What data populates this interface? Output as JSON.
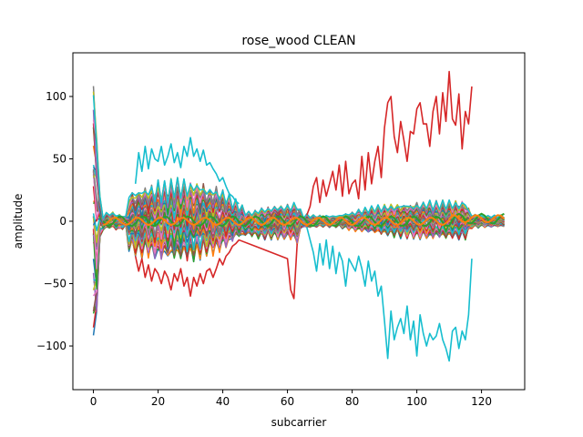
{
  "chart_data": {
    "type": "line",
    "title": "rose_wood CLEAN",
    "xlabel": "subcarrier",
    "ylabel": "amplitude",
    "xlim": [
      -6.35,
      133.35
    ],
    "ylim": [
      -135,
      135
    ],
    "xticks": [
      0,
      20,
      40,
      60,
      80,
      100,
      120
    ],
    "xtick_labels": [
      "0",
      "20",
      "40",
      "60",
      "80",
      "100",
      "120"
    ],
    "yticks": [
      -100,
      -50,
      0,
      50,
      100
    ],
    "ytick_labels": [
      "−100",
      "−50",
      "0",
      "50",
      "100"
    ],
    "grid": false,
    "legend": "none",
    "x_range": [
      0,
      127
    ],
    "series_count": 40,
    "palette": [
      "#1f77b4",
      "#ff7f0e",
      "#2ca02c",
      "#d62728",
      "#9467bd",
      "#8c564b",
      "#e377c2",
      "#7f7f7f",
      "#bcbd22",
      "#17becf"
    ],
    "envelope": {
      "x": [
        0,
        1,
        2,
        3,
        5,
        8,
        10,
        11,
        13,
        15,
        20,
        25,
        30,
        35,
        40,
        44,
        48,
        52,
        56,
        60,
        62,
        63,
        64,
        65,
        66,
        70,
        75,
        80,
        85,
        90,
        95,
        100,
        105,
        110,
        115,
        117,
        118,
        120,
        125,
        127
      ],
      "upper": [
        110,
        112,
        20,
        6,
        8,
        6,
        5,
        25,
        28,
        30,
        33,
        35,
        35,
        32,
        27,
        18,
        8,
        12,
        14,
        15,
        15,
        18,
        10,
        5,
        6,
        5,
        5,
        8,
        12,
        14,
        15,
        16,
        17,
        17,
        17,
        6,
        6,
        5,
        5,
        5
      ],
      "lower": [
        -125,
        -95,
        -20,
        -8,
        -6,
        -8,
        -5,
        -25,
        -28,
        -30,
        -33,
        -34,
        -33,
        -30,
        -25,
        -16,
        -12,
        -15,
        -15,
        -15,
        -15,
        -20,
        -8,
        -5,
        -6,
        -5,
        -5,
        -8,
        -10,
        -12,
        -14,
        -15,
        -15,
        -15,
        -15,
        -6,
        -6,
        -5,
        -5,
        -5
      ]
    },
    "outliers": [
      {
        "color": "#d62728",
        "x": [
          66,
          67,
          68,
          69,
          70,
          71,
          72,
          73,
          74,
          75,
          76,
          77,
          78,
          79,
          80,
          81,
          82,
          83,
          84,
          85,
          86,
          87,
          88,
          89,
          90,
          91,
          92,
          93,
          94,
          95,
          96,
          97,
          98,
          99,
          100,
          101,
          102,
          103,
          104,
          105,
          106,
          107,
          108,
          109,
          110,
          111,
          112,
          113,
          114,
          115,
          116,
          117
        ],
        "y": [
          5,
          12,
          28,
          35,
          15,
          33,
          20,
          30,
          40,
          25,
          45,
          20,
          48,
          22,
          30,
          33,
          18,
          52,
          25,
          55,
          30,
          48,
          60,
          35,
          75,
          95,
          100,
          68,
          55,
          80,
          65,
          48,
          72,
          70,
          90,
          95,
          78,
          78,
          60,
          88,
          100,
          70,
          103,
          80,
          120,
          82,
          77,
          102,
          58,
          88,
          78,
          108
        ]
      },
      {
        "color": "#17becf",
        "x": [
          66,
          67,
          68,
          69,
          70,
          71,
          72,
          73,
          74,
          75,
          76,
          77,
          78,
          79,
          80,
          81,
          82,
          83,
          84,
          85,
          86,
          87,
          88,
          89,
          90,
          91,
          92,
          93,
          94,
          95,
          96,
          97,
          98,
          99,
          100,
          101,
          102,
          103,
          104,
          105,
          106,
          107,
          108,
          109,
          110,
          111,
          112,
          113,
          114,
          115,
          116,
          117
        ],
        "y": [
          -5,
          -15,
          -25,
          -40,
          -18,
          -35,
          -15,
          -38,
          -20,
          -42,
          -25,
          -32,
          -52,
          -30,
          -35,
          -40,
          -28,
          -38,
          -52,
          -32,
          -48,
          -40,
          -60,
          -52,
          -80,
          -110,
          -72,
          -95,
          -85,
          -78,
          -90,
          -68,
          -95,
          -80,
          -108,
          -75,
          -90,
          -100,
          -90,
          -95,
          -92,
          -82,
          -95,
          -102,
          -112,
          -88,
          -85,
          -102,
          -88,
          -95,
          -75,
          -30
        ]
      },
      {
        "color": "#17becf",
        "x": [
          13,
          14,
          15,
          16,
          17,
          18,
          19,
          20,
          21,
          22,
          23,
          24,
          25,
          26,
          27,
          28,
          29,
          30,
          31,
          32,
          33,
          34,
          35,
          36,
          37,
          38,
          39,
          40,
          41,
          42,
          43,
          44,
          45
        ],
        "y": [
          30,
          55,
          40,
          60,
          42,
          58,
          50,
          48,
          60,
          45,
          52,
          62,
          47,
          55,
          43,
          60,
          52,
          67,
          52,
          58,
          48,
          57,
          45,
          47,
          42,
          38,
          32,
          35,
          28,
          22,
          20,
          16,
          14
        ]
      },
      {
        "color": "#d62728",
        "x": [
          13,
          14,
          15,
          16,
          17,
          18,
          19,
          20,
          21,
          22,
          23,
          24,
          25,
          26,
          27,
          28,
          29,
          30,
          31,
          32,
          33,
          34,
          35,
          36,
          37,
          38,
          39,
          40,
          41,
          42,
          43,
          44,
          45,
          50,
          55,
          60,
          61,
          62,
          63
        ],
        "y": [
          -28,
          -40,
          -30,
          -45,
          -35,
          -48,
          -38,
          -42,
          -50,
          -40,
          -45,
          -55,
          -42,
          -48,
          -38,
          -52,
          -45,
          -60,
          -45,
          -52,
          -42,
          -50,
          -40,
          -38,
          -45,
          -38,
          -30,
          -35,
          -28,
          -25,
          -20,
          -18,
          -15,
          -20,
          -25,
          -30,
          -55,
          -62,
          -18
        ]
      }
    ]
  }
}
